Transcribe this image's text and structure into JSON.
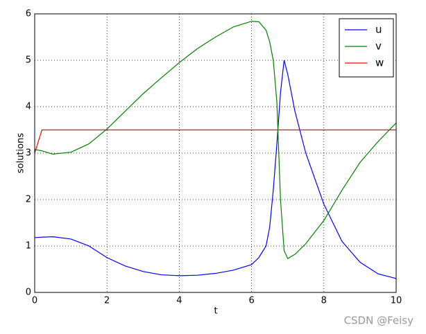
{
  "chart_data": {
    "type": "line",
    "xlabel": "t",
    "ylabel": "solutions",
    "x": [
      0,
      0.2,
      0.5,
      1,
      1.5,
      2,
      2.5,
      3,
      3.5,
      4,
      4.5,
      5,
      5.5,
      6,
      6.2,
      6.4,
      6.5,
      6.6,
      6.7,
      6.8,
      6.9,
      7,
      7.2,
      7.5,
      8,
      8.5,
      9,
      9.5,
      10
    ],
    "series": [
      {
        "name": "u",
        "color": "#0000ff",
        "values": [
          1.18,
          1.19,
          1.2,
          1.15,
          1.0,
          0.75,
          0.57,
          0.45,
          0.38,
          0.36,
          0.37,
          0.41,
          0.48,
          0.6,
          0.75,
          1.0,
          1.4,
          2.2,
          3.2,
          4.3,
          5.0,
          4.7,
          3.9,
          3.0,
          1.9,
          1.1,
          0.65,
          0.4,
          0.3
        ]
      },
      {
        "name": "v",
        "color": "#008000",
        "values": [
          3.08,
          3.05,
          2.98,
          3.02,
          3.2,
          3.52,
          3.9,
          4.28,
          4.62,
          4.95,
          5.25,
          5.5,
          5.72,
          5.84,
          5.83,
          5.65,
          5.4,
          5.0,
          4.1,
          2.0,
          0.9,
          0.73,
          0.82,
          1.05,
          1.55,
          2.2,
          2.8,
          3.25,
          3.65
        ]
      },
      {
        "name": "w",
        "color": "#ff0000",
        "values": [
          3.0,
          3.5,
          3.5,
          3.5,
          3.5,
          3.5,
          3.5,
          3.5,
          3.5,
          3.5,
          3.5,
          3.5,
          3.5,
          3.5,
          3.5,
          3.5,
          3.5,
          3.5,
          3.5,
          3.5,
          3.5,
          3.5,
          3.5,
          3.5,
          3.5,
          3.5,
          3.5,
          3.5,
          3.5
        ]
      }
    ],
    "xlim": [
      0,
      10
    ],
    "xticks": [
      0,
      2,
      4,
      6,
      8,
      10
    ],
    "ylim": [
      0,
      6
    ],
    "yticks": [
      0,
      1,
      2,
      3,
      4,
      5,
      6
    ],
    "grid": true,
    "legend": "upper right",
    "watermark": "CSDN @Feisy"
  }
}
